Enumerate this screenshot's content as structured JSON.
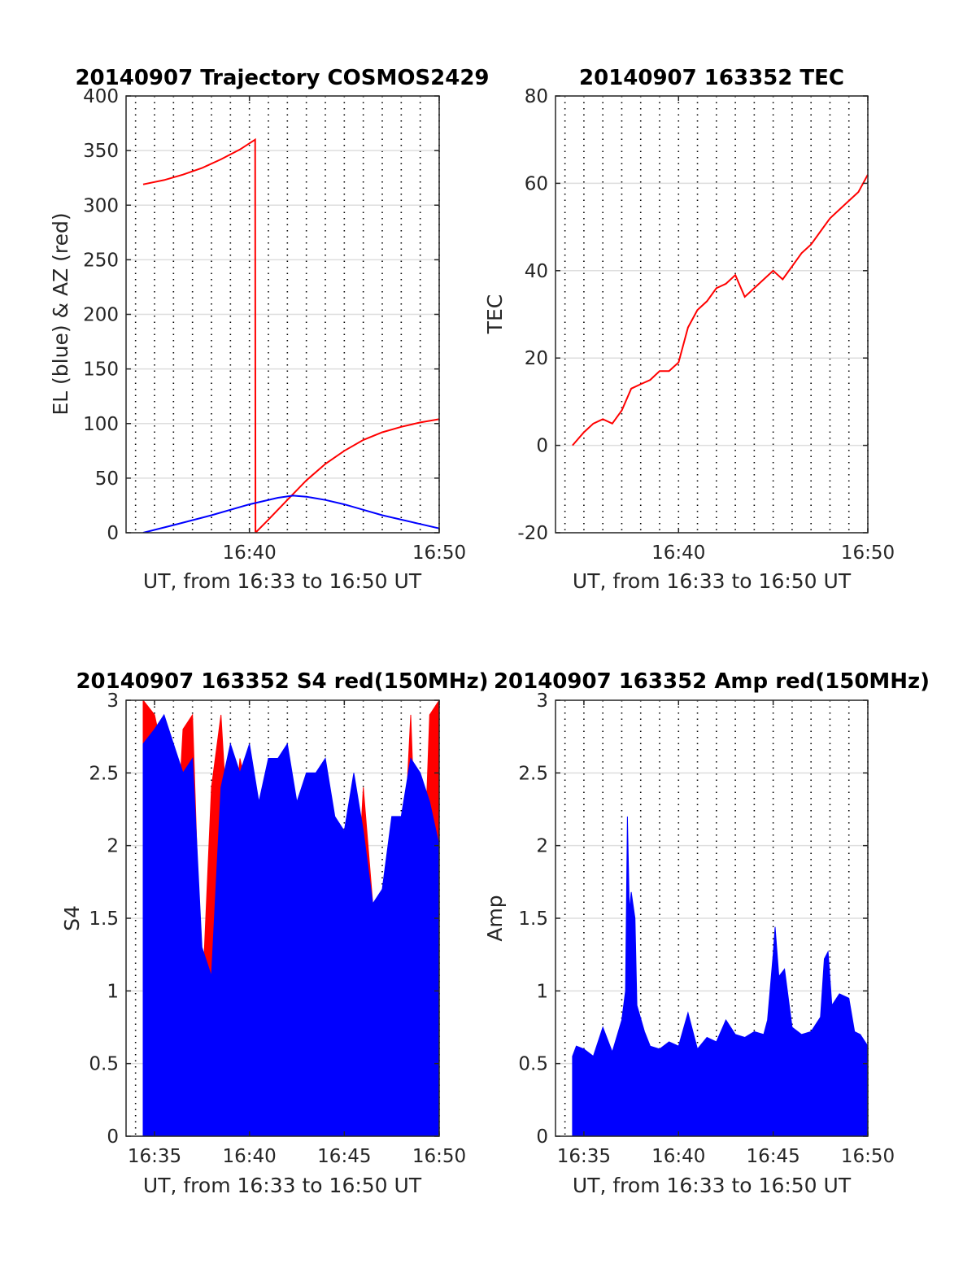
{
  "chart_data": [
    {
      "type": "line",
      "title": "20140907 Trajectory COSMOS2429",
      "xlabel": "UT, from 16:33 to 16:50 UT",
      "ylabel": "EL (blue) & AZ (red)",
      "xlim": [
        33.5,
        50
      ],
      "ylim": [
        0,
        400
      ],
      "x_ticks": [
        40,
        50
      ],
      "x_tick_labels": [
        "16:40",
        "16:50"
      ],
      "y_ticks": [
        0,
        50,
        100,
        150,
        200,
        250,
        300,
        350,
        400
      ],
      "y_tick_labels": [
        "0",
        "50",
        "100",
        "150",
        "200",
        "250",
        "300",
        "350",
        "400"
      ],
      "grid": true,
      "series": [
        {
          "color": "#ff0000",
          "x": [
            34.4,
            35.5,
            36.5,
            37.5,
            38.5,
            39.5,
            40.3,
            40.32,
            41,
            42,
            43,
            44,
            45,
            46,
            47,
            48,
            49,
            50
          ],
          "y": [
            319,
            323,
            328,
            334,
            342,
            351,
            360,
            0,
            12,
            30,
            48,
            63,
            75,
            85,
            92,
            97,
            101,
            104
          ]
        },
        {
          "color": "#0000ff",
          "x": [
            34.4,
            36,
            38,
            40,
            41.5,
            42.3,
            43,
            44,
            45,
            46,
            47,
            48,
            49,
            50
          ],
          "y": [
            0,
            7,
            16,
            26,
            32,
            34,
            33,
            30,
            26,
            21,
            16,
            12,
            8,
            4
          ]
        }
      ]
    },
    {
      "type": "line",
      "title": "20140907 163352 TEC",
      "xlabel": "UT, from 16:33 to 16:50 UT",
      "ylabel": "TEC",
      "xlim": [
        33.5,
        50
      ],
      "ylim": [
        -20,
        80
      ],
      "x_ticks": [
        40,
        50
      ],
      "x_tick_labels": [
        "16:40",
        "16:50"
      ],
      "y_ticks": [
        -20,
        0,
        20,
        40,
        60,
        80
      ],
      "y_tick_labels": [
        "-20",
        "0",
        "20",
        "40",
        "60",
        "80"
      ],
      "grid": true,
      "series": [
        {
          "color": "#ff0000",
          "x": [
            34.4,
            35,
            35.5,
            36,
            36.5,
            37,
            37.5,
            38,
            38.5,
            39,
            39.5,
            40,
            40.5,
            41,
            41.5,
            42,
            42.5,
            43,
            43.5,
            44,
            44.5,
            45,
            45.5,
            46,
            46.5,
            47,
            47.5,
            48,
            48.5,
            49,
            49.5,
            50
          ],
          "y": [
            0,
            3,
            5,
            6,
            5,
            8,
            13,
            14,
            15,
            17,
            17,
            19,
            27,
            31,
            33,
            36,
            37,
            39,
            34,
            36,
            38,
            40,
            38,
            41,
            44,
            46,
            49,
            52,
            54,
            56,
            58,
            62
          ]
        }
      ]
    },
    {
      "type": "area",
      "title": "20140907 163352 S4 red(150MHz)",
      "xlabel": "UT, from 16:33 to 16:50 UT",
      "ylabel": "S4",
      "xlim": [
        33.5,
        50
      ],
      "ylim": [
        0,
        3
      ],
      "x_ticks": [
        35,
        40,
        45,
        50
      ],
      "x_tick_labels": [
        "16:35",
        "16:40",
        "16:45",
        "16:50"
      ],
      "y_ticks": [
        0,
        0.5,
        1,
        1.5,
        2,
        2.5,
        3
      ],
      "y_tick_labels": [
        "0",
        "0.5",
        "1",
        "1.5",
        "2",
        "2.5",
        "3"
      ],
      "grid": true,
      "series": [
        {
          "color": "#ff0000",
          "x": [
            34.4,
            35,
            35.5,
            36,
            36.5,
            37,
            37.5,
            38,
            38.5,
            39,
            39.5,
            40,
            40.5,
            41,
            41.5,
            42,
            42.5,
            43,
            43.5,
            44,
            44.5,
            45,
            45.5,
            46,
            46.5,
            47,
            47.5,
            48,
            48.5,
            49,
            49.5,
            50
          ],
          "y": [
            3,
            2.9,
            2.6,
            1.6,
            2.8,
            2.9,
            0.9,
            2.4,
            2.9,
            1.8,
            2.6,
            2.3,
            2.0,
            1.9,
            1.6,
            2.2,
            1.8,
            1.5,
            2.3,
            1.4,
            1.9,
            1.7,
            1.2,
            2.4,
            1.6,
            1.5,
            1.3,
            1.6,
            2.9,
            1.1,
            2.9,
            3
          ]
        },
        {
          "color": "#0000ff",
          "x": [
            34.4,
            35,
            35.5,
            36,
            36.5,
            37,
            37.5,
            38,
            38.5,
            39,
            39.5,
            40,
            40.5,
            41,
            41.5,
            42,
            42.5,
            43,
            43.5,
            44,
            44.5,
            45,
            45.5,
            46,
            46.5,
            47,
            47.5,
            48,
            48.5,
            49,
            49.5,
            50
          ],
          "y": [
            2.7,
            2.8,
            2.9,
            2.7,
            2.5,
            2.6,
            1.3,
            1.1,
            2.4,
            2.7,
            2.5,
            2.7,
            2.3,
            2.6,
            2.6,
            2.7,
            2.3,
            2.5,
            2.5,
            2.6,
            2.2,
            2.1,
            2.5,
            2.1,
            1.6,
            1.7,
            2.2,
            2.2,
            2.6,
            2.5,
            2.3,
            2.0
          ]
        }
      ]
    },
    {
      "type": "area",
      "title": "20140907 163352 Amp red(150MHz)",
      "xlabel": "UT, from 16:33 to 16:50 UT",
      "ylabel": "Amp",
      "xlim": [
        33.5,
        50
      ],
      "ylim": [
        0,
        3
      ],
      "x_ticks": [
        35,
        40,
        45,
        50
      ],
      "x_tick_labels": [
        "16:35",
        "16:40",
        "16:45",
        "16:50"
      ],
      "y_ticks": [
        0,
        0.5,
        1,
        1.5,
        2,
        2.5,
        3
      ],
      "y_tick_labels": [
        "0",
        "0.5",
        "1",
        "1.5",
        "2",
        "2.5",
        "3"
      ],
      "grid": true,
      "series": [
        {
          "color": "#0000ff",
          "x": [
            34.4,
            34.6,
            35,
            35.5,
            36,
            36.5,
            37,
            37.2,
            37.3,
            37.4,
            37.5,
            37.7,
            37.8,
            38.2,
            38.5,
            39,
            39.5,
            40,
            40.5,
            41,
            41.5,
            42,
            42.5,
            43,
            43.5,
            44,
            44.5,
            44.7,
            45,
            45.1,
            45.3,
            45.6,
            46,
            46.5,
            47,
            47.5,
            47.7,
            47.9,
            48.1,
            48.5,
            49,
            49.3,
            49.6,
            50
          ],
          "y": [
            0.55,
            0.62,
            0.6,
            0.55,
            0.75,
            0.58,
            0.8,
            1.0,
            2.2,
            1.55,
            1.68,
            1.5,
            0.9,
            0.72,
            0.62,
            0.6,
            0.65,
            0.62,
            0.85,
            0.6,
            0.68,
            0.65,
            0.8,
            0.7,
            0.68,
            0.72,
            0.7,
            0.8,
            1.25,
            1.44,
            1.1,
            1.15,
            0.75,
            0.7,
            0.72,
            0.82,
            1.22,
            1.27,
            0.9,
            0.98,
            0.95,
            0.72,
            0.7,
            0.62
          ]
        }
      ]
    }
  ]
}
